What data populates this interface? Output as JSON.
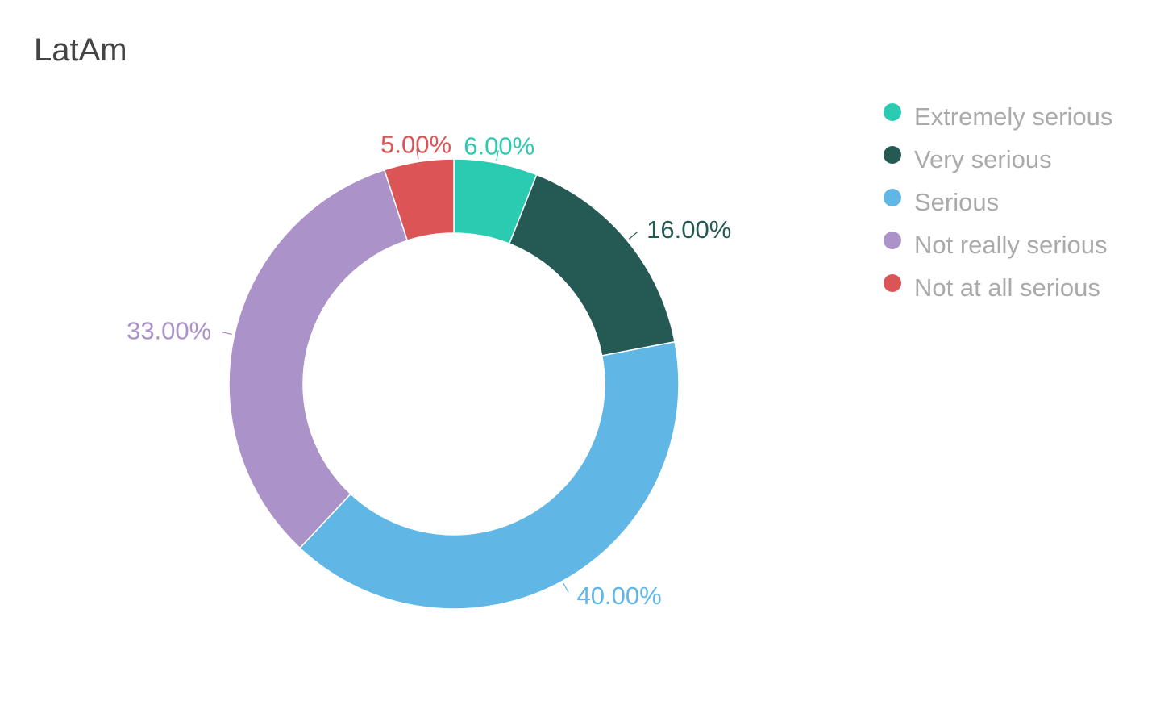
{
  "chart_data": {
    "type": "pie",
    "title": "LatAm",
    "categories": [
      "Extremely serious",
      "Very serious",
      "Serious",
      "Not really serious",
      "Not at all serious"
    ],
    "values": [
      6,
      16,
      40,
      33,
      5
    ],
    "value_labels": [
      "6.00%",
      "16.00%",
      "40.00%",
      "33.00%",
      "5.00%"
    ],
    "colors": [
      "#2bcbb2",
      "#255a54",
      "#60b6e4",
      "#ab92c8",
      "#dc5556"
    ],
    "donut": true,
    "legend_position": "top-right"
  }
}
